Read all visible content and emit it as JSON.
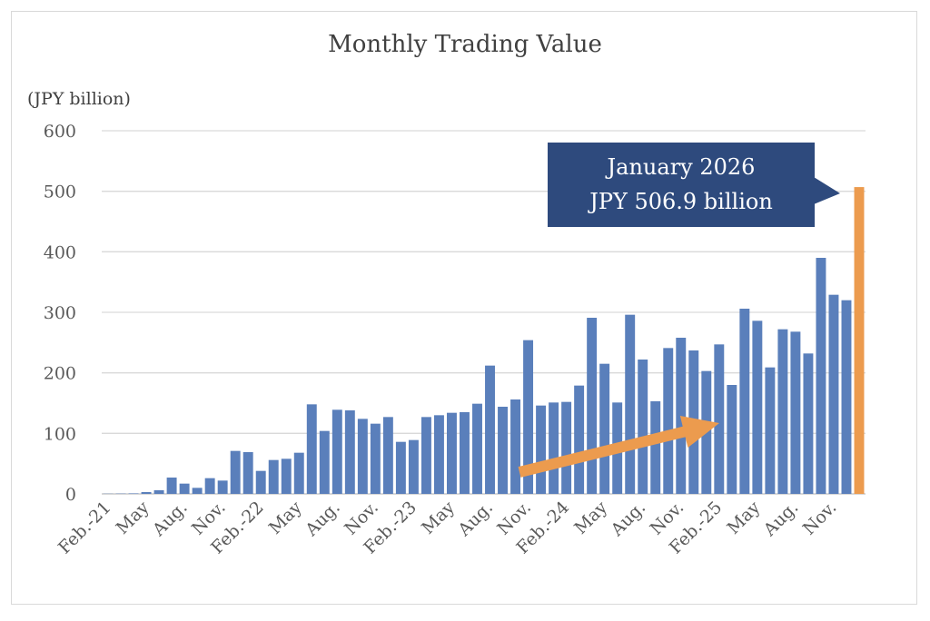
{
  "chart_data": {
    "type": "bar",
    "title": "Monthly Trading Value",
    "ylabel": "(JPY billion)",
    "ylim": [
      0,
      600
    ],
    "yticks": [
      0,
      100,
      200,
      300,
      400,
      500,
      600
    ],
    "grid": true,
    "x_tick_labels": [
      "Feb.-21",
      "May",
      "Aug.",
      "Nov.",
      "Feb.-22",
      "May",
      "Aug.",
      "Nov.",
      "Feb.-23",
      "May",
      "Aug.",
      "Nov.",
      "Feb.-24",
      "May",
      "Aug.",
      "Nov.",
      "Feb.-25",
      "May",
      "Aug.",
      "Nov."
    ],
    "categories": [
      "2021-02",
      "2021-03",
      "2021-04",
      "2021-05",
      "2021-06",
      "2021-07",
      "2021-08",
      "2021-09",
      "2021-10",
      "2021-11",
      "2021-12",
      "2022-01",
      "2022-02",
      "2022-03",
      "2022-04",
      "2022-05",
      "2022-06",
      "2022-07",
      "2022-08",
      "2022-09",
      "2022-10",
      "2022-11",
      "2022-12",
      "2023-01",
      "2023-02",
      "2023-03",
      "2023-04",
      "2023-05",
      "2023-06",
      "2023-07",
      "2023-08",
      "2023-09",
      "2023-10",
      "2023-11",
      "2023-12",
      "2024-01",
      "2024-02",
      "2024-03",
      "2024-04",
      "2024-05",
      "2024-06",
      "2024-07",
      "2024-08",
      "2024-09",
      "2024-10",
      "2024-11",
      "2024-12",
      "2025-01",
      "2025-02",
      "2025-03",
      "2025-04",
      "2025-05",
      "2025-06",
      "2025-07",
      "2025-08",
      "2025-09",
      "2025-10",
      "2025-11",
      "2025-12",
      "2026-01"
    ],
    "values": [
      0.3,
      0.5,
      0.8,
      3,
      6,
      27,
      17,
      10,
      26,
      22,
      71,
      69,
      38,
      56,
      58,
      68,
      148,
      104,
      139,
      138,
      124,
      116,
      127,
      86,
      89,
      127,
      130,
      134,
      135,
      149,
      212,
      144,
      156,
      254,
      146,
      151,
      152,
      179,
      291,
      215,
      151,
      296,
      222,
      153,
      241,
      258,
      237,
      203,
      247,
      180,
      306,
      286,
      209,
      272,
      268,
      232,
      390,
      329,
      320,
      506.9
    ],
    "colors": {
      "bar": "#5a7fbb",
      "highlight": "#ec9b4e",
      "callout": "#2e4a7d"
    },
    "annotation": {
      "line1": "January 2026",
      "line2": "JPY 506.9 billion"
    },
    "trend_arrow": "upward"
  }
}
